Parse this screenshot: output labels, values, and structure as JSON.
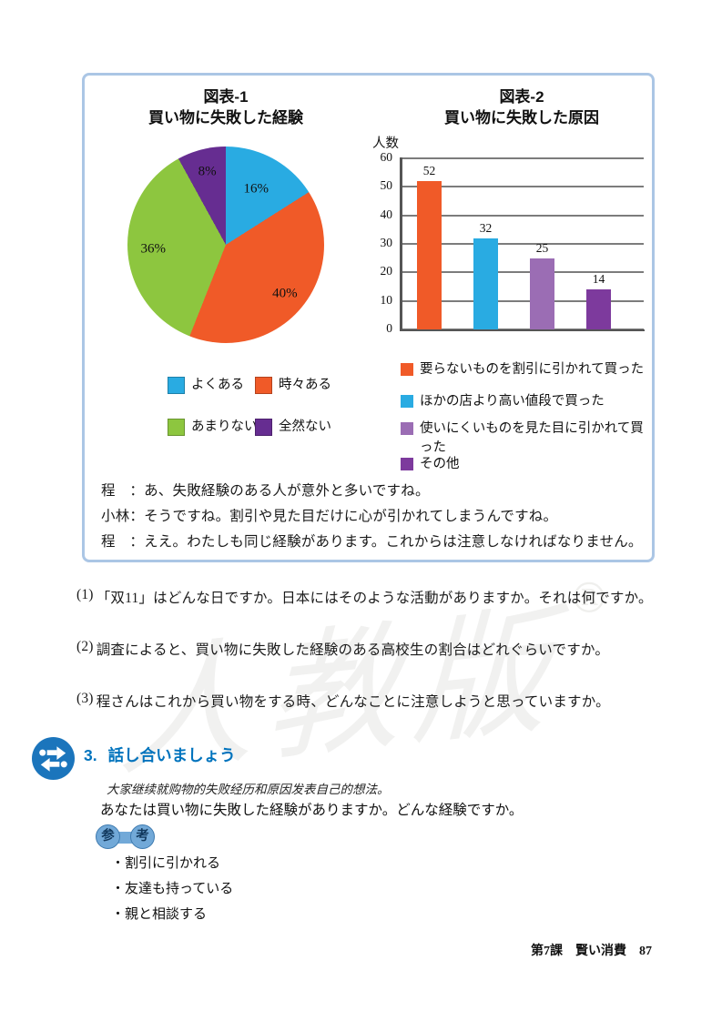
{
  "page": {
    "footer": {
      "lesson": "第7課",
      "title": "賢い消費",
      "page_number": "87"
    },
    "watermark": {
      "text": "人教版",
      "registered_mark": "®"
    }
  },
  "figure_panel": {
    "pie_chart": {
      "title": "図表-1",
      "subtitle": "買い物に失敗した経験",
      "slices": [
        {
          "label": "よくある",
          "percent": 16,
          "color": "#29abe2"
        },
        {
          "label": "時々ある",
          "percent": 40,
          "color": "#f05a28"
        },
        {
          "label": "あまりない",
          "percent": 36,
          "color": "#8dc63f"
        },
        {
          "label": "全然ない",
          "percent": 8,
          "color": "#662d91"
        }
      ]
    },
    "bar_chart": {
      "title": "図表-2",
      "subtitle": "買い物に失敗した原因",
      "y_axis_label": "人数",
      "y_ticks": [
        60,
        50,
        40,
        30,
        20,
        10,
        0
      ],
      "y_max": 60,
      "bars": [
        {
          "label": "要らないものを割引に引かれて買った",
          "value": 52,
          "color": "#f05a28"
        },
        {
          "label": "ほかの店より高い値段で買った",
          "value": 32,
          "color": "#29abe2"
        },
        {
          "label": "使いにくいものを見た目に引かれて買った",
          "value": 25,
          "color": "#9b6db4"
        },
        {
          "label": "その他",
          "value": 14,
          "color": "#7d3a9d"
        }
      ]
    },
    "dialogue": [
      {
        "speaker": "程　：",
        "text": "あ、失敗経験のある人が意外と多いですね。"
      },
      {
        "speaker": "小林：",
        "text": "そうですね。割引や見た目だけに心が引かれてしまうんですね。"
      },
      {
        "speaker": "程　：",
        "text": "ええ。わたしも同じ経験があります。これからは注意しなければなりません。"
      }
    ]
  },
  "questions": [
    {
      "num": "(1)",
      "text": "「双11」はどんな日ですか。日本にはそのような活動がありますか。それは何ですか。"
    },
    {
      "num": "(2)",
      "text": "調査によると、買い物に失敗した経験のある高校生の割合はどれぐらいですか。"
    },
    {
      "num": "(3)",
      "text": "程さんはこれから買い物をする時、どんなことに注意しようと思っていますか。"
    }
  ],
  "discussion_section": {
    "number": "3.",
    "heading": "話し合いましょう",
    "instruction_zh": "大家继续就购物的失败经历和原因发表自己的想法。",
    "prompt_ja": "あなたは買い物に失敗した経験がありますか。どんな経験ですか。",
    "reference_badge": {
      "char1": "参",
      "char2": "考"
    },
    "bullet": "・",
    "reference_items": [
      "割引に引かれる",
      "友達も持っている",
      "親と相談する"
    ]
  },
  "chart_data": [
    {
      "type": "pie",
      "title": "図表-1 買い物に失敗した経験",
      "labels": [
        "よくある",
        "時々ある",
        "あまりない",
        "全然ない"
      ],
      "values_percent": [
        16,
        40,
        36,
        8
      ],
      "colors": [
        "#29abe2",
        "#f05a28",
        "#8dc63f",
        "#662d91"
      ],
      "legend_position": "below"
    },
    {
      "type": "bar",
      "title": "図表-2 買い物に失敗した原因",
      "ylabel": "人数",
      "ylim": [
        0,
        60
      ],
      "yticks": [
        0,
        10,
        20,
        30,
        40,
        50,
        60
      ],
      "categories": [
        "要らないものを割引に引かれて買った",
        "ほかの店より高い値段で買った",
        "使いにくいものを見た目に引かれて買った",
        "その他"
      ],
      "values": [
        52,
        32,
        25,
        14
      ],
      "colors": [
        "#f05a28",
        "#29abe2",
        "#9b6db4",
        "#7d3a9d"
      ],
      "grid": true,
      "legend_position": "below"
    }
  ]
}
